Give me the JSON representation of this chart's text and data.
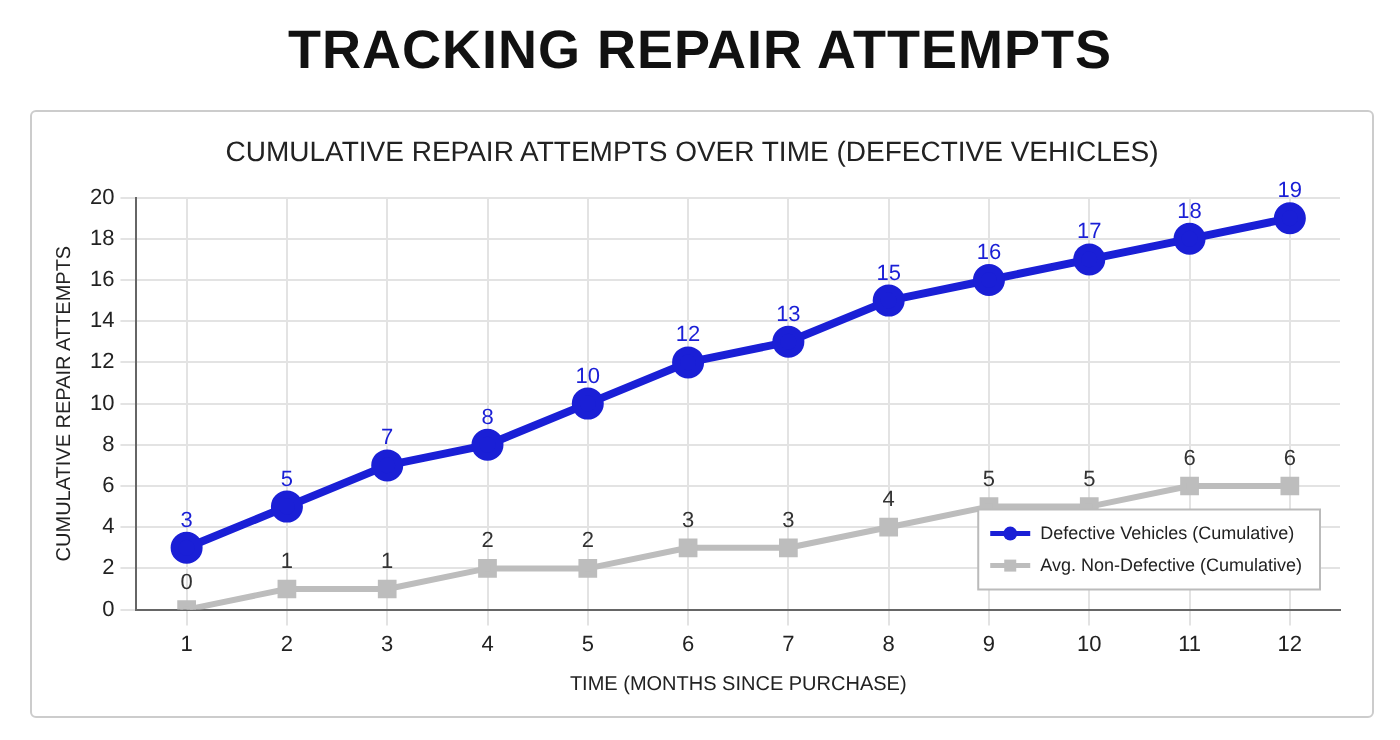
{
  "chart_data": {
    "type": "line",
    "title": "TRACKING REPAIR ATTEMPTS",
    "subtitle": "CUMULATIVE REPAIR ATTEMPTS OVER TIME (DEFECTIVE VEHICLES)",
    "xlabel": "TIME (MONTHS SINCE PURCHASE)",
    "ylabel": "CUMULATIVE REPAIR ATTEMPTS",
    "x": [
      1,
      2,
      3,
      4,
      5,
      6,
      7,
      8,
      9,
      10,
      11,
      12
    ],
    "xlim": [
      0.5,
      12.5
    ],
    "xticks": [
      1,
      2,
      3,
      4,
      5,
      6,
      7,
      8,
      9,
      10,
      11,
      12
    ],
    "series": [
      {
        "name": "Defective Vehicles (Cumulative)",
        "color": "#1a1fd6",
        "marker": "circle",
        "values": [
          3,
          5,
          7,
          8,
          10,
          12,
          13,
          15,
          16,
          17,
          18,
          19
        ]
      },
      {
        "name": "Avg. Non-Defective (Cumulative)",
        "color": "#bdbdbd",
        "marker": "square",
        "values": [
          0,
          1,
          1,
          2,
          2,
          3,
          3,
          4,
          5,
          5,
          6,
          6
        ]
      }
    ],
    "ylim": [
      0,
      20
    ],
    "yticks": [
      0,
      2,
      4,
      6,
      8,
      10,
      12,
      14,
      16,
      18,
      20
    ],
    "grid": true,
    "legend": "bottom right",
    "data_labels": true,
    "line_style": "solid"
  }
}
